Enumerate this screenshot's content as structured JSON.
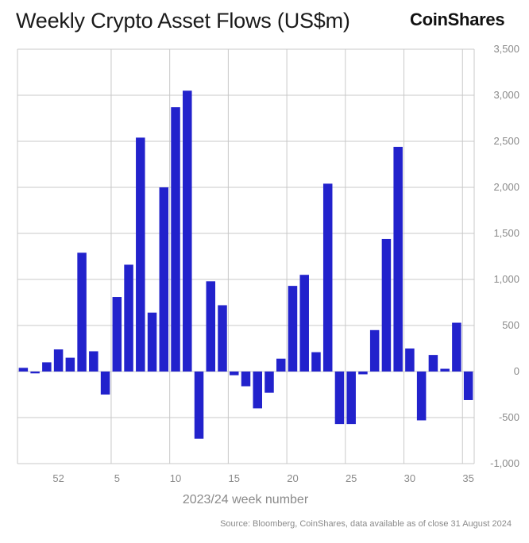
{
  "header": {
    "title": "Weekly Crypto Asset Flows (US$m)",
    "logo_text": "CoinShares"
  },
  "footer": {
    "source": "Source: Bloomberg, CoinShares, data available as of close 31 August 2024"
  },
  "colors": {
    "bar": "#2222cc",
    "grid": "#c8c8c8",
    "axis_text": "#8a8a8a"
  },
  "chart_data": {
    "type": "bar",
    "title": "Weekly Crypto Asset Flows (US$m)",
    "xlabel": "2023/24 week number",
    "ylabel": "",
    "ylim": [
      -1000,
      3500
    ],
    "yticks": [
      -1000,
      -500,
      0,
      500,
      1000,
      1500,
      2000,
      2500,
      3000,
      3500
    ],
    "ytick_labels": [
      "-1,000",
      "-500",
      "0",
      "500",
      "1,000",
      "1,500",
      "2,000",
      "2,500",
      "3,000",
      "3,500"
    ],
    "grid": true,
    "y_axis_side": "right",
    "categories": [
      "49",
      "50",
      "51",
      "52",
      "1",
      "2",
      "3",
      "4",
      "5",
      "6",
      "7",
      "8",
      "9",
      "10",
      "11",
      "12",
      "13",
      "14",
      "15",
      "16",
      "17",
      "18",
      "19",
      "20",
      "21",
      "22",
      "23",
      "24",
      "25",
      "26",
      "27",
      "28",
      "29",
      "30",
      "31",
      "32",
      "33",
      "34",
      "35"
    ],
    "values": [
      40,
      -20,
      100,
      240,
      150,
      1290,
      220,
      -250,
      810,
      1160,
      2540,
      640,
      2000,
      2870,
      3050,
      -730,
      980,
      720,
      -40,
      -160,
      -400,
      -230,
      140,
      930,
      1050,
      210,
      2040,
      -570,
      -570,
      -30,
      450,
      1440,
      2440,
      250,
      -530,
      180,
      30,
      530,
      -310
    ],
    "xtick_labels": [
      "52",
      "5",
      "10",
      "15",
      "20",
      "25",
      "30",
      "35"
    ]
  }
}
